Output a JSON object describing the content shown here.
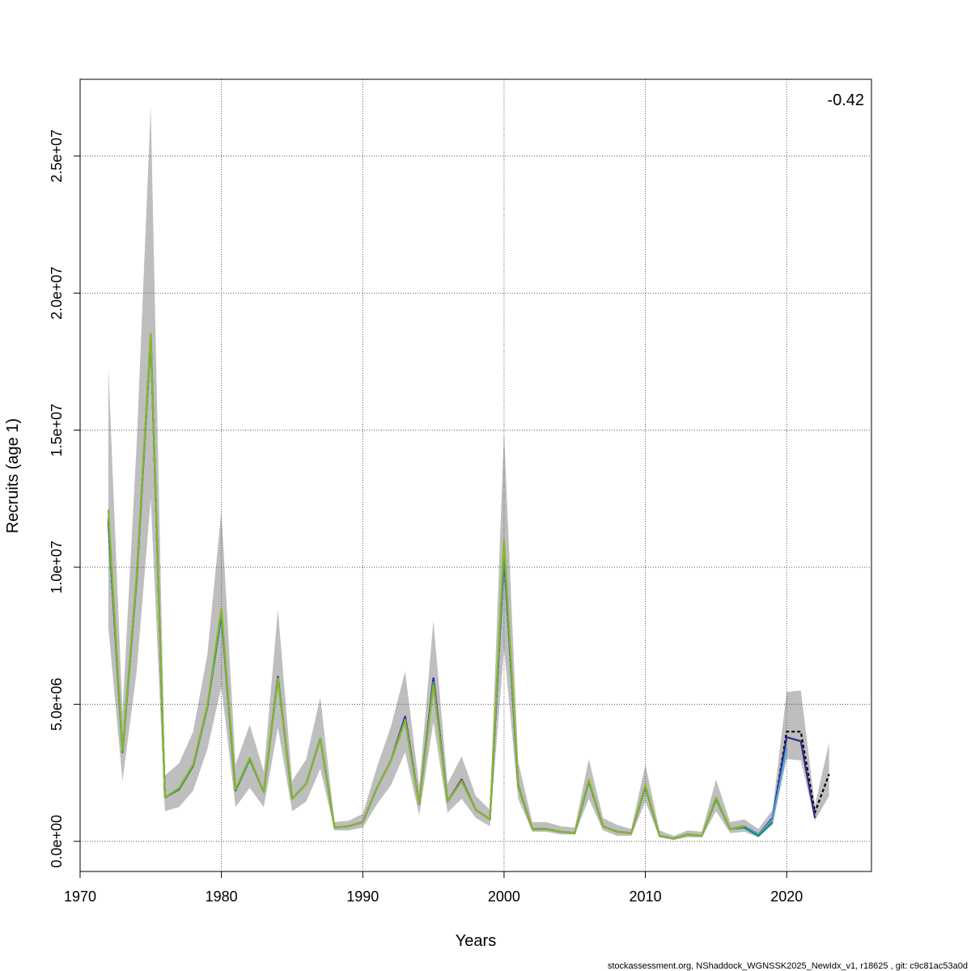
{
  "chart_data": {
    "type": "line",
    "xlabel": "Years",
    "ylabel": "Recruits (age 1)",
    "annotation": "-0.42",
    "footer": "stockassessment.org, NShaddock_WGNSSK2025_NewIdx_v1, r18625 , git: c9c81ac53a0d",
    "xlim": [
      1970,
      2026
    ],
    "ylim": [
      -1100000,
      27800000
    ],
    "x_ticks": [
      1970,
      1980,
      1990,
      2000,
      2010,
      2020
    ],
    "x_tick_labels": [
      "1970",
      "1980",
      "1990",
      "2000",
      "2010",
      "2020"
    ],
    "y_ticks": [
      0,
      5000000,
      10000000,
      15000000,
      20000000,
      25000000
    ],
    "y_tick_labels": [
      "0.0e+00",
      "5.0e+06",
      "1.0e+07",
      "1.5e+07",
      "2.0e+07",
      "2.5e+07"
    ],
    "grid": true,
    "band_color": "#bebebe",
    "band": {
      "x": [
        1972,
        1973,
        1974,
        1975,
        1976,
        1977,
        1978,
        1979,
        1980,
        1981,
        1982,
        1983,
        1984,
        1985,
        1986,
        1987,
        1988,
        1989,
        1990,
        1991,
        1992,
        1993,
        1994,
        1995,
        1996,
        1997,
        1998,
        1999,
        2000,
        2001,
        2002,
        2003,
        2004,
        2005,
        2006,
        2007,
        2008,
        2009,
        2010,
        2011,
        2012,
        2013,
        2014,
        2015,
        2016,
        2017,
        2018,
        2019,
        2020,
        2021,
        2022,
        2023
      ],
      "upper": [
        17300000,
        4700000,
        14500000,
        26800000,
        2400000,
        2850000,
        4000000,
        6800000,
        12050000,
        2800000,
        4250000,
        2550000,
        8450000,
        2200000,
        3000000,
        5250000,
        700000,
        750000,
        1000000,
        2700000,
        4200000,
        6200000,
        2000000,
        8050000,
        2100000,
        3100000,
        1650000,
        1150000,
        14950000,
        2900000,
        700000,
        700000,
        550000,
        500000,
        3000000,
        850000,
        600000,
        450000,
        2800000,
        400000,
        200000,
        400000,
        350000,
        2250000,
        700000,
        800000,
        450000,
        1150000,
        5450000,
        5500000,
        1300000,
        3600000
      ],
      "lower": [
        7800000,
        2200000,
        6200000,
        12500000,
        1100000,
        1250000,
        1850000,
        3350000,
        5650000,
        1250000,
        1950000,
        1250000,
        4150000,
        1100000,
        1450000,
        2650000,
        400000,
        400000,
        500000,
        1350000,
        2050000,
        3250000,
        950000,
        4350000,
        1050000,
        1550000,
        850000,
        550000,
        7050000,
        1550000,
        350000,
        350000,
        250000,
        250000,
        1550000,
        400000,
        200000,
        200000,
        1450000,
        150000,
        50000,
        150000,
        150000,
        1100000,
        300000,
        350000,
        150000,
        600000,
        3000000,
        2950000,
        750000,
        1650000
      ]
    },
    "series": [
      {
        "color": "#000000",
        "dash": "4,3",
        "values": [
          11600000,
          3300000,
          9600000,
          18400000,
          1600000,
          1900000,
          2750000,
          4900000,
          8300000,
          1850000,
          3000000,
          1800000,
          6000000,
          1550000,
          2100000,
          3750000,
          500000,
          550000,
          700000,
          1950000,
          2950000,
          4550000,
          1350000,
          5950000,
          1450000,
          2250000,
          1150000,
          800000,
          10400000,
          2050000,
          450000,
          450000,
          350000,
          300000,
          2200000,
          550000,
          350000,
          300000,
          2000000,
          200000,
          100000,
          250000,
          200000,
          1550000,
          450000,
          550000,
          250000,
          800000,
          4000000,
          4000000,
          1050000,
          2450000
        ]
      },
      {
        "color": "#2b2a8c",
        "dash": "",
        "values": [
          11600000,
          3250000,
          9550000,
          18400000,
          1600000,
          1900000,
          2750000,
          4900000,
          8250000,
          1850000,
          3000000,
          1800000,
          6000000,
          1550000,
          2100000,
          3750000,
          500000,
          550000,
          700000,
          1950000,
          2950000,
          4550000,
          1350000,
          5950000,
          1450000,
          2250000,
          1150000,
          800000,
          10400000,
          2050000,
          450000,
          450000,
          350000,
          300000,
          2200000,
          550000,
          350000,
          300000,
          2000000,
          200000,
          100000,
          250000,
          200000,
          1550000,
          450000,
          550000,
          250000,
          850000,
          3800000,
          3650000,
          850000
        ]
      },
      {
        "color": "#4fa3e0",
        "dash": "",
        "values": [
          11700000,
          3250000,
          9600000,
          18450000,
          1600000,
          1900000,
          2750000,
          4900000,
          8250000,
          1850000,
          3000000,
          1800000,
          5950000,
          1550000,
          2100000,
          3750000,
          500000,
          550000,
          700000,
          1950000,
          2950000,
          4450000,
          1350000,
          5800000,
          1450000,
          2200000,
          1150000,
          800000,
          10500000,
          2050000,
          450000,
          450000,
          350000,
          300000,
          2200000,
          550000,
          350000,
          300000,
          2000000,
          200000,
          100000,
          250000,
          200000,
          1550000,
          450000,
          550000,
          250000,
          800000,
          3400000
        ]
      },
      {
        "color": "#1a8a6a",
        "dash": "",
        "values": [
          11800000,
          3250000,
          9650000,
          18500000,
          1600000,
          1900000,
          2750000,
          4900000,
          8300000,
          1850000,
          3000000,
          1800000,
          5950000,
          1550000,
          2100000,
          3750000,
          500000,
          550000,
          700000,
          1950000,
          2950000,
          4400000,
          1350000,
          5750000,
          1450000,
          2200000,
          1150000,
          800000,
          10700000,
          2050000,
          450000,
          450000,
          350000,
          300000,
          2200000,
          550000,
          350000,
          300000,
          2000000,
          200000,
          100000,
          250000,
          200000,
          1550000,
          450000,
          500000,
          200000,
          700000
        ]
      },
      {
        "color": "#8cb52a",
        "dash": "",
        "values": [
          12100000,
          3300000,
          9700000,
          18500000,
          1600000,
          1950000,
          2800000,
          4950000,
          8500000,
          1900000,
          3050000,
          1800000,
          5950000,
          1550000,
          2100000,
          3750000,
          500000,
          550000,
          700000,
          1950000,
          2950000,
          4400000,
          1350000,
          5700000,
          1450000,
          2200000,
          1150000,
          800000,
          11000000,
          2100000,
          450000,
          450000,
          350000,
          300000,
          2250000,
          550000,
          350000,
          300000,
          2050000,
          200000,
          100000,
          250000,
          200000,
          1600000,
          450000,
          550000
        ]
      }
    ]
  }
}
